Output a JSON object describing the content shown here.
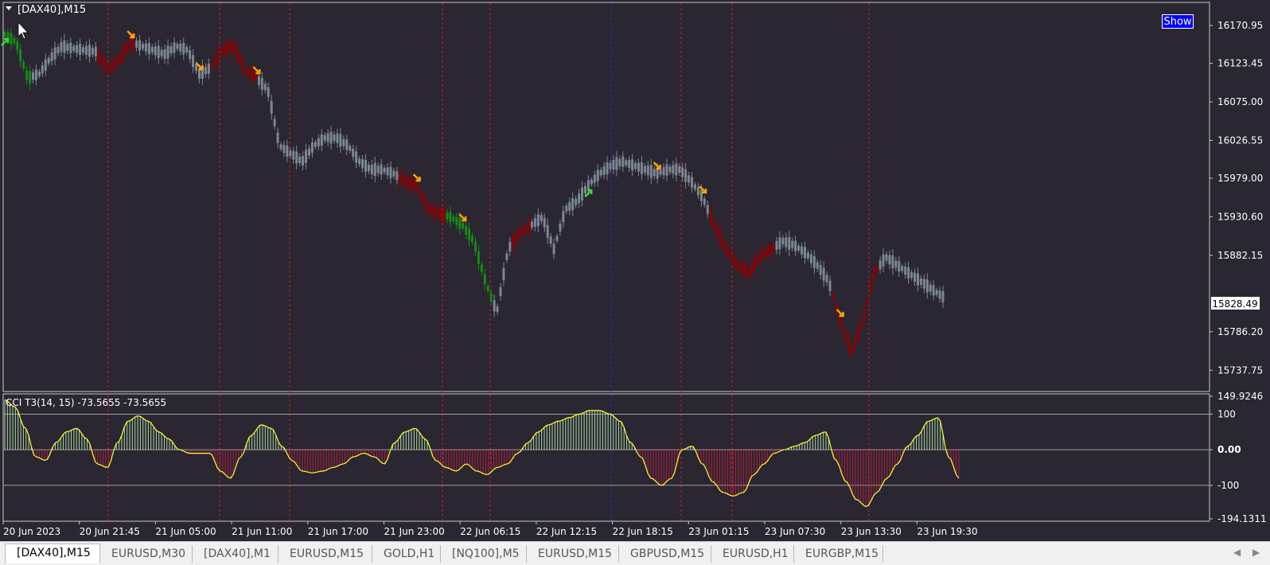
{
  "window": {
    "symbol_label": "[DAX40],M15",
    "show_button": "Show"
  },
  "price_pane": {
    "current_price_label": "15828.49",
    "y_ticks": [
      "16170.95",
      "16123.45",
      "16075.00",
      "16026.55",
      "15979.00",
      "15930.60",
      "15882.15",
      "15786.20",
      "15737.75"
    ],
    "ylim": [
      15715,
      16195
    ]
  },
  "indicator_pane": {
    "label": "CCI T3(14, 15) -73.5655 -73.5655",
    "y_ticks": [
      "149.9246",
      "100",
      "0.00",
      "-100",
      "-194.1311"
    ],
    "ylim": [
      -194.1311,
      149.9246
    ],
    "levels": [
      100,
      0,
      -100
    ]
  },
  "x_axis": {
    "tick_labels": [
      "20 Jun 2023",
      "20 Jun 21:45",
      "21 Jun 05:00",
      "21 Jun 11:00",
      "21 Jun 17:00",
      "21 Jun 23:00",
      "22 Jun 06:15",
      "22 Jun 12:15",
      "22 Jun 18:15",
      "23 Jun 01:15",
      "23 Jun 07:30",
      "23 Jun 13:30",
      "23 Jun 19:30"
    ]
  },
  "chart_data": [
    {
      "type": "line",
      "series": [
        {
          "values": [
            16160,
            16150,
            16105,
            16110,
            16130,
            16145,
            16142,
            16140,
            16138,
            16115,
            16128,
            16150,
            16145,
            16140,
            16135,
            16145,
            16140,
            16110,
            16118,
            16140,
            16145,
            16115,
            16105,
            16090,
            16020,
            16010,
            16000,
            16020,
            16030,
            16030,
            16020,
            16000,
            15990,
            15990,
            15985,
            15975,
            15970,
            15940,
            15935,
            15930,
            15920,
            15900,
            15850,
            15810,
            15890,
            15910,
            15920,
            15930,
            15890,
            15940,
            15950,
            15970,
            15985,
            15995,
            16000,
            15995,
            15990,
            15985,
            15990,
            15990,
            15975,
            15955,
            15920,
            15890,
            15870,
            15860,
            15880,
            15890,
            15900,
            15895,
            15885,
            15870,
            15850,
            15800,
            15760,
            15800,
            15860,
            15880,
            15870,
            15860,
            15850,
            15840,
            15830
          ]
        }
      ],
      "colors": {
        "up_trend": "#168b16",
        "down_trend": "#8b0000",
        "neutral": "#7c8794"
      }
    },
    {
      "type": "area",
      "series": [
        {
          "values": [
            140,
            120,
            60,
            -20,
            -30,
            20,
            50,
            60,
            30,
            -40,
            -50,
            20,
            80,
            95,
            80,
            50,
            30,
            0,
            -10,
            -10,
            -10,
            -60,
            -80,
            -20,
            40,
            70,
            60,
            10,
            -30,
            -60,
            -65,
            -60,
            -50,
            -40,
            -20,
            -10,
            -20,
            -40,
            20,
            50,
            60,
            30,
            -30,
            -50,
            -60,
            -40,
            -60,
            -70,
            -50,
            -40,
            -10,
            20,
            50,
            70,
            80,
            90,
            100,
            110,
            110,
            100,
            80,
            20,
            -20,
            -80,
            -100,
            -80,
            0,
            10,
            -40,
            -90,
            -120,
            -130,
            -120,
            -70,
            -40,
            -10,
            0,
            10,
            20,
            40,
            50,
            -30,
            -90,
            -140,
            -160,
            -120,
            -80,
            -40,
            10,
            40,
            80,
            90,
            -20,
            -80
          ]
        }
      ],
      "colors": {
        "positive": "#a8d8a0",
        "negative": "#b0203c",
        "line": "#ffff33"
      }
    }
  ],
  "tabs": [
    "[DAX40],M15",
    "EURUSD,M30",
    "[DAX40],M1",
    "EURUSD,M15",
    "GOLD,H1",
    "[NQ100],M5",
    "EURUSD,M15",
    "GBPUSD,M15",
    "EURUSD,H1",
    "EURGBP,M15"
  ],
  "active_tab": 0
}
